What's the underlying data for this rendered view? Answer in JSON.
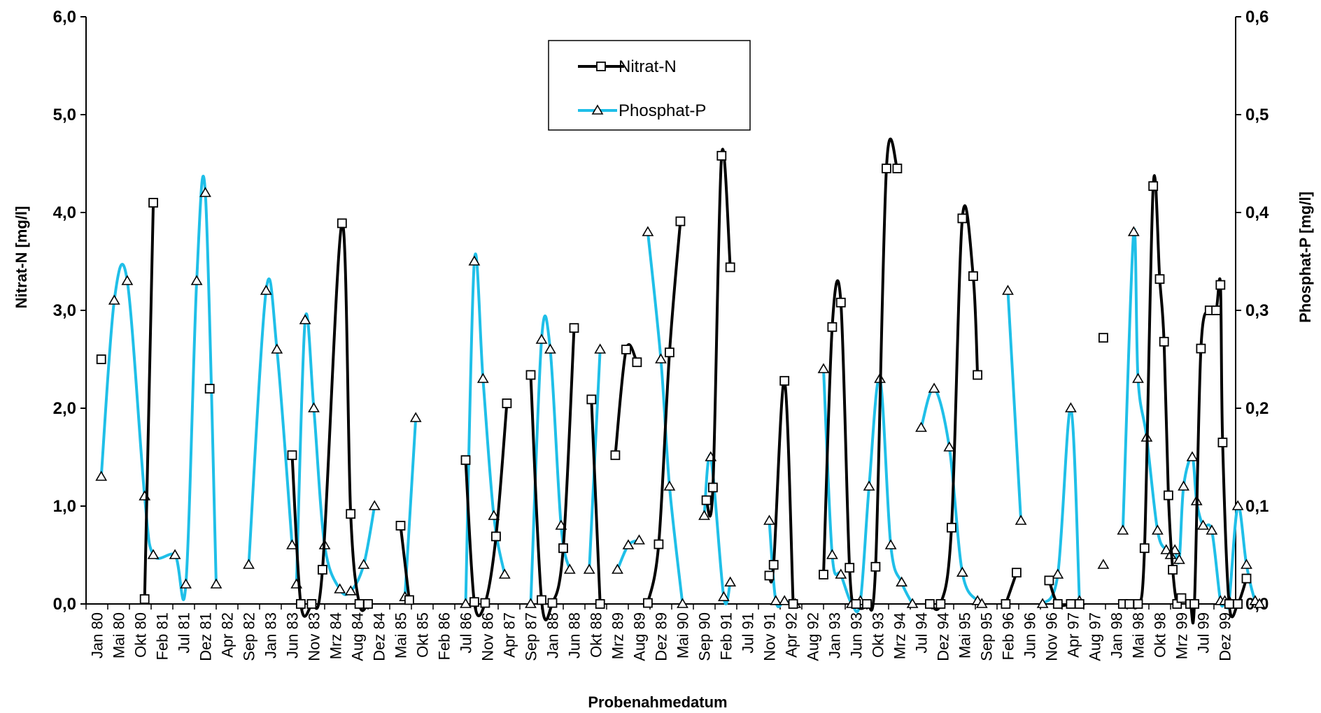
{
  "chart_data": {
    "type": "line",
    "xlabel": "Probenahmedatum",
    "ylabel_left": "Nitrat-N [mg/l]",
    "ylabel_right": "Phosphat-P [mg/l]",
    "ylim_left": [
      0,
      6
    ],
    "ylim_right": [
      0,
      0.6
    ],
    "y_ticks_left": [
      "0,0",
      "1,0",
      "2,0",
      "3,0",
      "4,0",
      "5,0",
      "6,0"
    ],
    "y_ticks_right": [
      "0,0",
      "0,1",
      "0,2",
      "0,3",
      "0,4",
      "0,5",
      "0,6"
    ],
    "x_tick_labels": [
      "Jan 80",
      "Mai 80",
      "Okt 80",
      "Feb 81",
      "Jul 81",
      "Dez 81",
      "Apr 82",
      "Sep 82",
      "Jan 83",
      "Jun 83",
      "Nov 83",
      "Mrz 84",
      "Aug 84",
      "Dez 84",
      "Mai 85",
      "Okt 85",
      "Feb 86",
      "Jul 86",
      "Nov 86",
      "Apr 87",
      "Sep 87",
      "Jan 88",
      "Jun 88",
      "Okt 88",
      "Mrz 89",
      "Aug 89",
      "Dez 89",
      "Mai 90",
      "Sep 90",
      "Feb 91",
      "Jul 91",
      "Nov 91",
      "Apr 92",
      "Aug 92",
      "Jan 93",
      "Jun 93",
      "Okt 93",
      "Mrz 94",
      "Jul 94",
      "Dez 94",
      "Mai 95",
      "Sep 95",
      "Feb 96",
      "Jun 96",
      "Nov 96",
      "Apr 97",
      "Aug 97",
      "Jan 98",
      "Mai 98",
      "Okt 98",
      "Mrz 99",
      "Jul 99",
      "Dez 99"
    ],
    "legend_position": "top-center",
    "grid": false,
    "series": [
      {
        "name": "Nitrat-N",
        "axis": "left",
        "color": "#000000",
        "marker": "square",
        "segments": [
          [
            [
              0.2,
              2.5
            ]
          ],
          [
            [
              2.2,
              0.05
            ],
            [
              2.6,
              4.1
            ]
          ],
          [
            [
              5.2,
              2.2
            ]
          ],
          [
            [
              9.0,
              1.52
            ],
            [
              9.4,
              0.0
            ],
            [
              9.9,
              0.0
            ],
            [
              10.4,
              0.35
            ],
            [
              11.3,
              3.89
            ],
            [
              11.7,
              0.92
            ],
            [
              12.1,
              0.0
            ],
            [
              12.5,
              0.0
            ]
          ],
          [
            [
              14.0,
              0.8
            ],
            [
              14.4,
              0.04
            ]
          ],
          [
            [
              17.0,
              1.47
            ],
            [
              17.4,
              0.02
            ],
            [
              17.9,
              0.01
            ],
            [
              18.4,
              0.69
            ],
            [
              18.9,
              2.05
            ]
          ],
          [
            [
              20.0,
              2.34
            ],
            [
              20.5,
              0.04
            ],
            [
              21.0,
              0.01
            ],
            [
              21.5,
              0.57
            ],
            [
              22.0,
              2.82
            ]
          ],
          [
            [
              22.8,
              2.09
            ],
            [
              23.2,
              0.0
            ]
          ],
          [
            [
              23.9,
              1.52
            ],
            [
              24.4,
              2.6
            ],
            [
              24.9,
              2.47
            ]
          ],
          [
            [
              25.4,
              0.01
            ],
            [
              25.9,
              0.61
            ],
            [
              26.4,
              2.57
            ],
            [
              26.9,
              3.91
            ]
          ],
          [
            [
              28.1,
              1.06
            ],
            [
              28.4,
              1.19
            ],
            [
              28.8,
              4.58
            ],
            [
              29.2,
              3.44
            ]
          ],
          [
            [
              31.0,
              0.29
            ],
            [
              31.2,
              0.4
            ],
            [
              31.7,
              2.28
            ],
            [
              32.1,
              0.0
            ]
          ],
          [
            [
              33.5,
              0.3
            ],
            [
              33.9,
              2.83
            ],
            [
              34.3,
              3.08
            ],
            [
              34.7,
              0.37
            ],
            [
              35.0,
              0.0
            ],
            [
              35.5,
              0.0
            ],
            [
              35.9,
              0.38
            ],
            [
              36.4,
              4.45
            ],
            [
              36.9,
              4.45
            ]
          ],
          [
            [
              38.4,
              0.0
            ],
            [
              38.9,
              0.0
            ],
            [
              39.4,
              0.78
            ],
            [
              39.9,
              3.94
            ],
            [
              40.4,
              3.35
            ],
            [
              40.6,
              2.34
            ]
          ],
          [
            [
              41.9,
              0.0
            ],
            [
              42.4,
              0.32
            ]
          ],
          [
            [
              43.9,
              0.24
            ],
            [
              44.3,
              0.0
            ],
            [
              44.9,
              0.0
            ],
            [
              45.3,
              0.0
            ]
          ],
          [
            [
              46.4,
              2.72
            ]
          ],
          [
            [
              47.3,
              0.0
            ],
            [
              47.6,
              0.0
            ],
            [
              48.0,
              0.0
            ],
            [
              48.3,
              0.57
            ],
            [
              48.7,
              4.27
            ],
            [
              49.0,
              3.32
            ],
            [
              49.2,
              2.68
            ],
            [
              49.4,
              1.11
            ],
            [
              49.6,
              0.35
            ],
            [
              49.8,
              0.0
            ],
            [
              50.0,
              0.06
            ],
            [
              50.4,
              0.0
            ],
            [
              50.6,
              0.0
            ],
            [
              50.9,
              2.61
            ],
            [
              51.3,
              3.0
            ],
            [
              51.6,
              3.0
            ],
            [
              51.8,
              3.26
            ],
            [
              51.9,
              1.65
            ],
            [
              52.2,
              0.0
            ],
            [
              52.6,
              0.0
            ],
            [
              53.0,
              0.26
            ]
          ]
        ]
      },
      {
        "name": "Phosphat-P",
        "axis": "right",
        "color": "#1fbfe8",
        "marker": "triangle",
        "segments": [
          [
            [
              0.2,
              0.13
            ],
            [
              0.8,
              0.31
            ],
            [
              1.4,
              0.33
            ],
            [
              2.2,
              0.11
            ],
            [
              2.6,
              0.05
            ],
            [
              3.6,
              0.05
            ],
            [
              4.1,
              0.02
            ],
            [
              4.6,
              0.33
            ],
            [
              5.0,
              0.42
            ],
            [
              5.5,
              0.02
            ]
          ],
          [
            [
              7.0,
              0.04
            ],
            [
              7.8,
              0.32
            ],
            [
              8.3,
              0.26
            ],
            [
              9.0,
              0.06
            ]
          ],
          [
            [
              9.2,
              0.02
            ],
            [
              9.6,
              0.29
            ],
            [
              10.0,
              0.2
            ],
            [
              10.5,
              0.06
            ],
            [
              11.2,
              0.015
            ],
            [
              11.7,
              0.013
            ],
            [
              12.3,
              0.04
            ],
            [
              12.8,
              0.1
            ]
          ],
          [
            [
              14.2,
              0.007
            ],
            [
              14.7,
              0.19
            ]
          ],
          [
            [
              17.0,
              0.0
            ],
            [
              17.4,
              0.35
            ],
            [
              17.8,
              0.23
            ],
            [
              18.3,
              0.09
            ],
            [
              18.8,
              0.03
            ]
          ],
          [
            [
              20.0,
              0.0
            ],
            [
              20.5,
              0.27
            ],
            [
              20.9,
              0.26
            ],
            [
              21.4,
              0.08
            ],
            [
              21.8,
              0.035
            ]
          ],
          [
            [
              22.7,
              0.035
            ],
            [
              23.2,
              0.26
            ]
          ],
          [
            [
              24.0,
              0.035
            ],
            [
              24.5,
              0.06
            ],
            [
              25.0,
              0.065
            ]
          ],
          [
            [
              25.4,
              0.38
            ],
            [
              26.0,
              0.25
            ],
            [
              26.4,
              0.12
            ],
            [
              27.0,
              0.0
            ]
          ],
          [
            [
              28.0,
              0.09
            ],
            [
              28.3,
              0.15
            ],
            [
              28.9,
              0.007
            ],
            [
              29.2,
              0.022
            ]
          ],
          [
            [
              31.0,
              0.085
            ],
            [
              31.3,
              0.003
            ],
            [
              31.7,
              0.003
            ],
            [
              32.2,
              0.0
            ]
          ],
          [
            [
              33.5,
              0.24
            ],
            [
              33.9,
              0.05
            ],
            [
              34.3,
              0.03
            ],
            [
              34.8,
              0.0
            ],
            [
              35.2,
              0.003
            ],
            [
              35.6,
              0.12
            ],
            [
              36.1,
              0.23
            ],
            [
              36.6,
              0.06
            ],
            [
              37.1,
              0.022
            ],
            [
              37.6,
              0.0
            ]
          ],
          [
            [
              38.0,
              0.18
            ],
            [
              38.6,
              0.22
            ],
            [
              39.3,
              0.16
            ],
            [
              39.9,
              0.032
            ],
            [
              40.6,
              0.003
            ],
            [
              40.8,
              0.0
            ]
          ],
          [
            [
              42.0,
              0.32
            ],
            [
              42.6,
              0.085
            ]
          ],
          [
            [
              43.6,
              0.0
            ],
            [
              44.3,
              0.03
            ],
            [
              44.9,
              0.2
            ],
            [
              45.3,
              0.003
            ]
          ],
          [
            [
              46.4,
              0.04
            ]
          ],
          [
            [
              47.3,
              0.075
            ],
            [
              47.8,
              0.38
            ],
            [
              48.0,
              0.23
            ],
            [
              48.4,
              0.17
            ],
            [
              48.9,
              0.075
            ],
            [
              49.3,
              0.055
            ],
            [
              49.5,
              0.05
            ],
            [
              49.7,
              0.055
            ],
            [
              49.9,
              0.045
            ],
            [
              50.1,
              0.12
            ],
            [
              50.5,
              0.15
            ],
            [
              50.7,
              0.105
            ],
            [
              51.0,
              0.08
            ],
            [
              51.4,
              0.075
            ],
            [
              51.8,
              0.003
            ],
            [
              52.0,
              0.003
            ],
            [
              52.2,
              0.003
            ],
            [
              52.6,
              0.1
            ],
            [
              53.0,
              0.04
            ],
            [
              53.4,
              0.003
            ],
            [
              53.6,
              0.0
            ]
          ]
        ]
      }
    ]
  }
}
